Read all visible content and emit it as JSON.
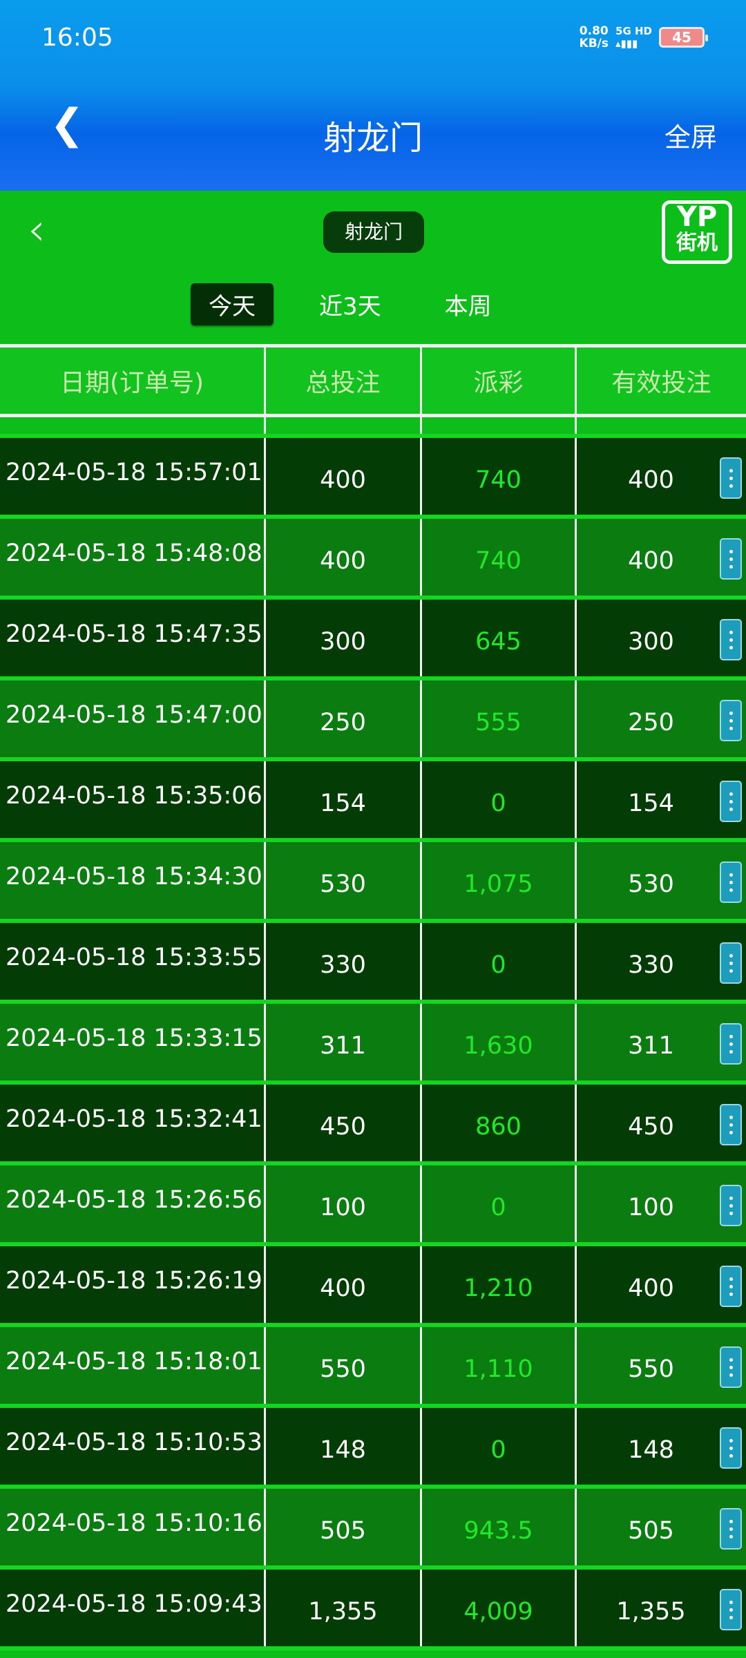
{
  "status_bar": {
    "time": "16:05",
    "speed_value": "0.80",
    "speed_unit": "KB/s",
    "network": "5G HD",
    "battery": "45"
  },
  "nav": {
    "title": "射龙门",
    "fullscreen": "全屏"
  },
  "game": {
    "title_pill": "射龙门",
    "logo_top": "YP",
    "logo_bottom": "街机",
    "tabs": [
      {
        "label": "今天",
        "active": true
      },
      {
        "label": "近3天",
        "active": false
      },
      {
        "label": "本周",
        "active": false
      }
    ]
  },
  "table": {
    "headers": [
      "日期(订单号)",
      "总投注",
      "派彩",
      "有效投注"
    ],
    "rows": [
      [
        "2024-05-18 15:57:01",
        "400",
        "740",
        "400"
      ],
      [
        "2024-05-18 15:48:08",
        "400",
        "740",
        "400"
      ],
      [
        "2024-05-18 15:47:35",
        "300",
        "645",
        "300"
      ],
      [
        "2024-05-18 15:47:00",
        "250",
        "555",
        "250"
      ],
      [
        "2024-05-18 15:35:06",
        "154",
        "0",
        "154"
      ],
      [
        "2024-05-18 15:34:30",
        "530",
        "1,075",
        "530"
      ],
      [
        "2024-05-18 15:33:55",
        "330",
        "0",
        "330"
      ],
      [
        "2024-05-18 15:33:15",
        "311",
        "1,630",
        "311"
      ],
      [
        "2024-05-18 15:32:41",
        "450",
        "860",
        "450"
      ],
      [
        "2024-05-18 15:26:56",
        "100",
        "0",
        "100"
      ],
      [
        "2024-05-18 15:26:19",
        "400",
        "1,210",
        "400"
      ],
      [
        "2024-05-18 15:18:01",
        "550",
        "1,110",
        "550"
      ],
      [
        "2024-05-18 15:10:53",
        "148",
        "0",
        "148"
      ],
      [
        "2024-05-18 15:10:16",
        "505",
        "943.5",
        "505"
      ],
      [
        "2024-05-18 15:09:43",
        "1,355",
        "4,009",
        "1,355"
      ]
    ]
  },
  "colors": {
    "payout_green": "#22e82a",
    "more_button": "#1d9cbc",
    "row_dark": "#033d05",
    "row_mid": "#0a7c10"
  }
}
